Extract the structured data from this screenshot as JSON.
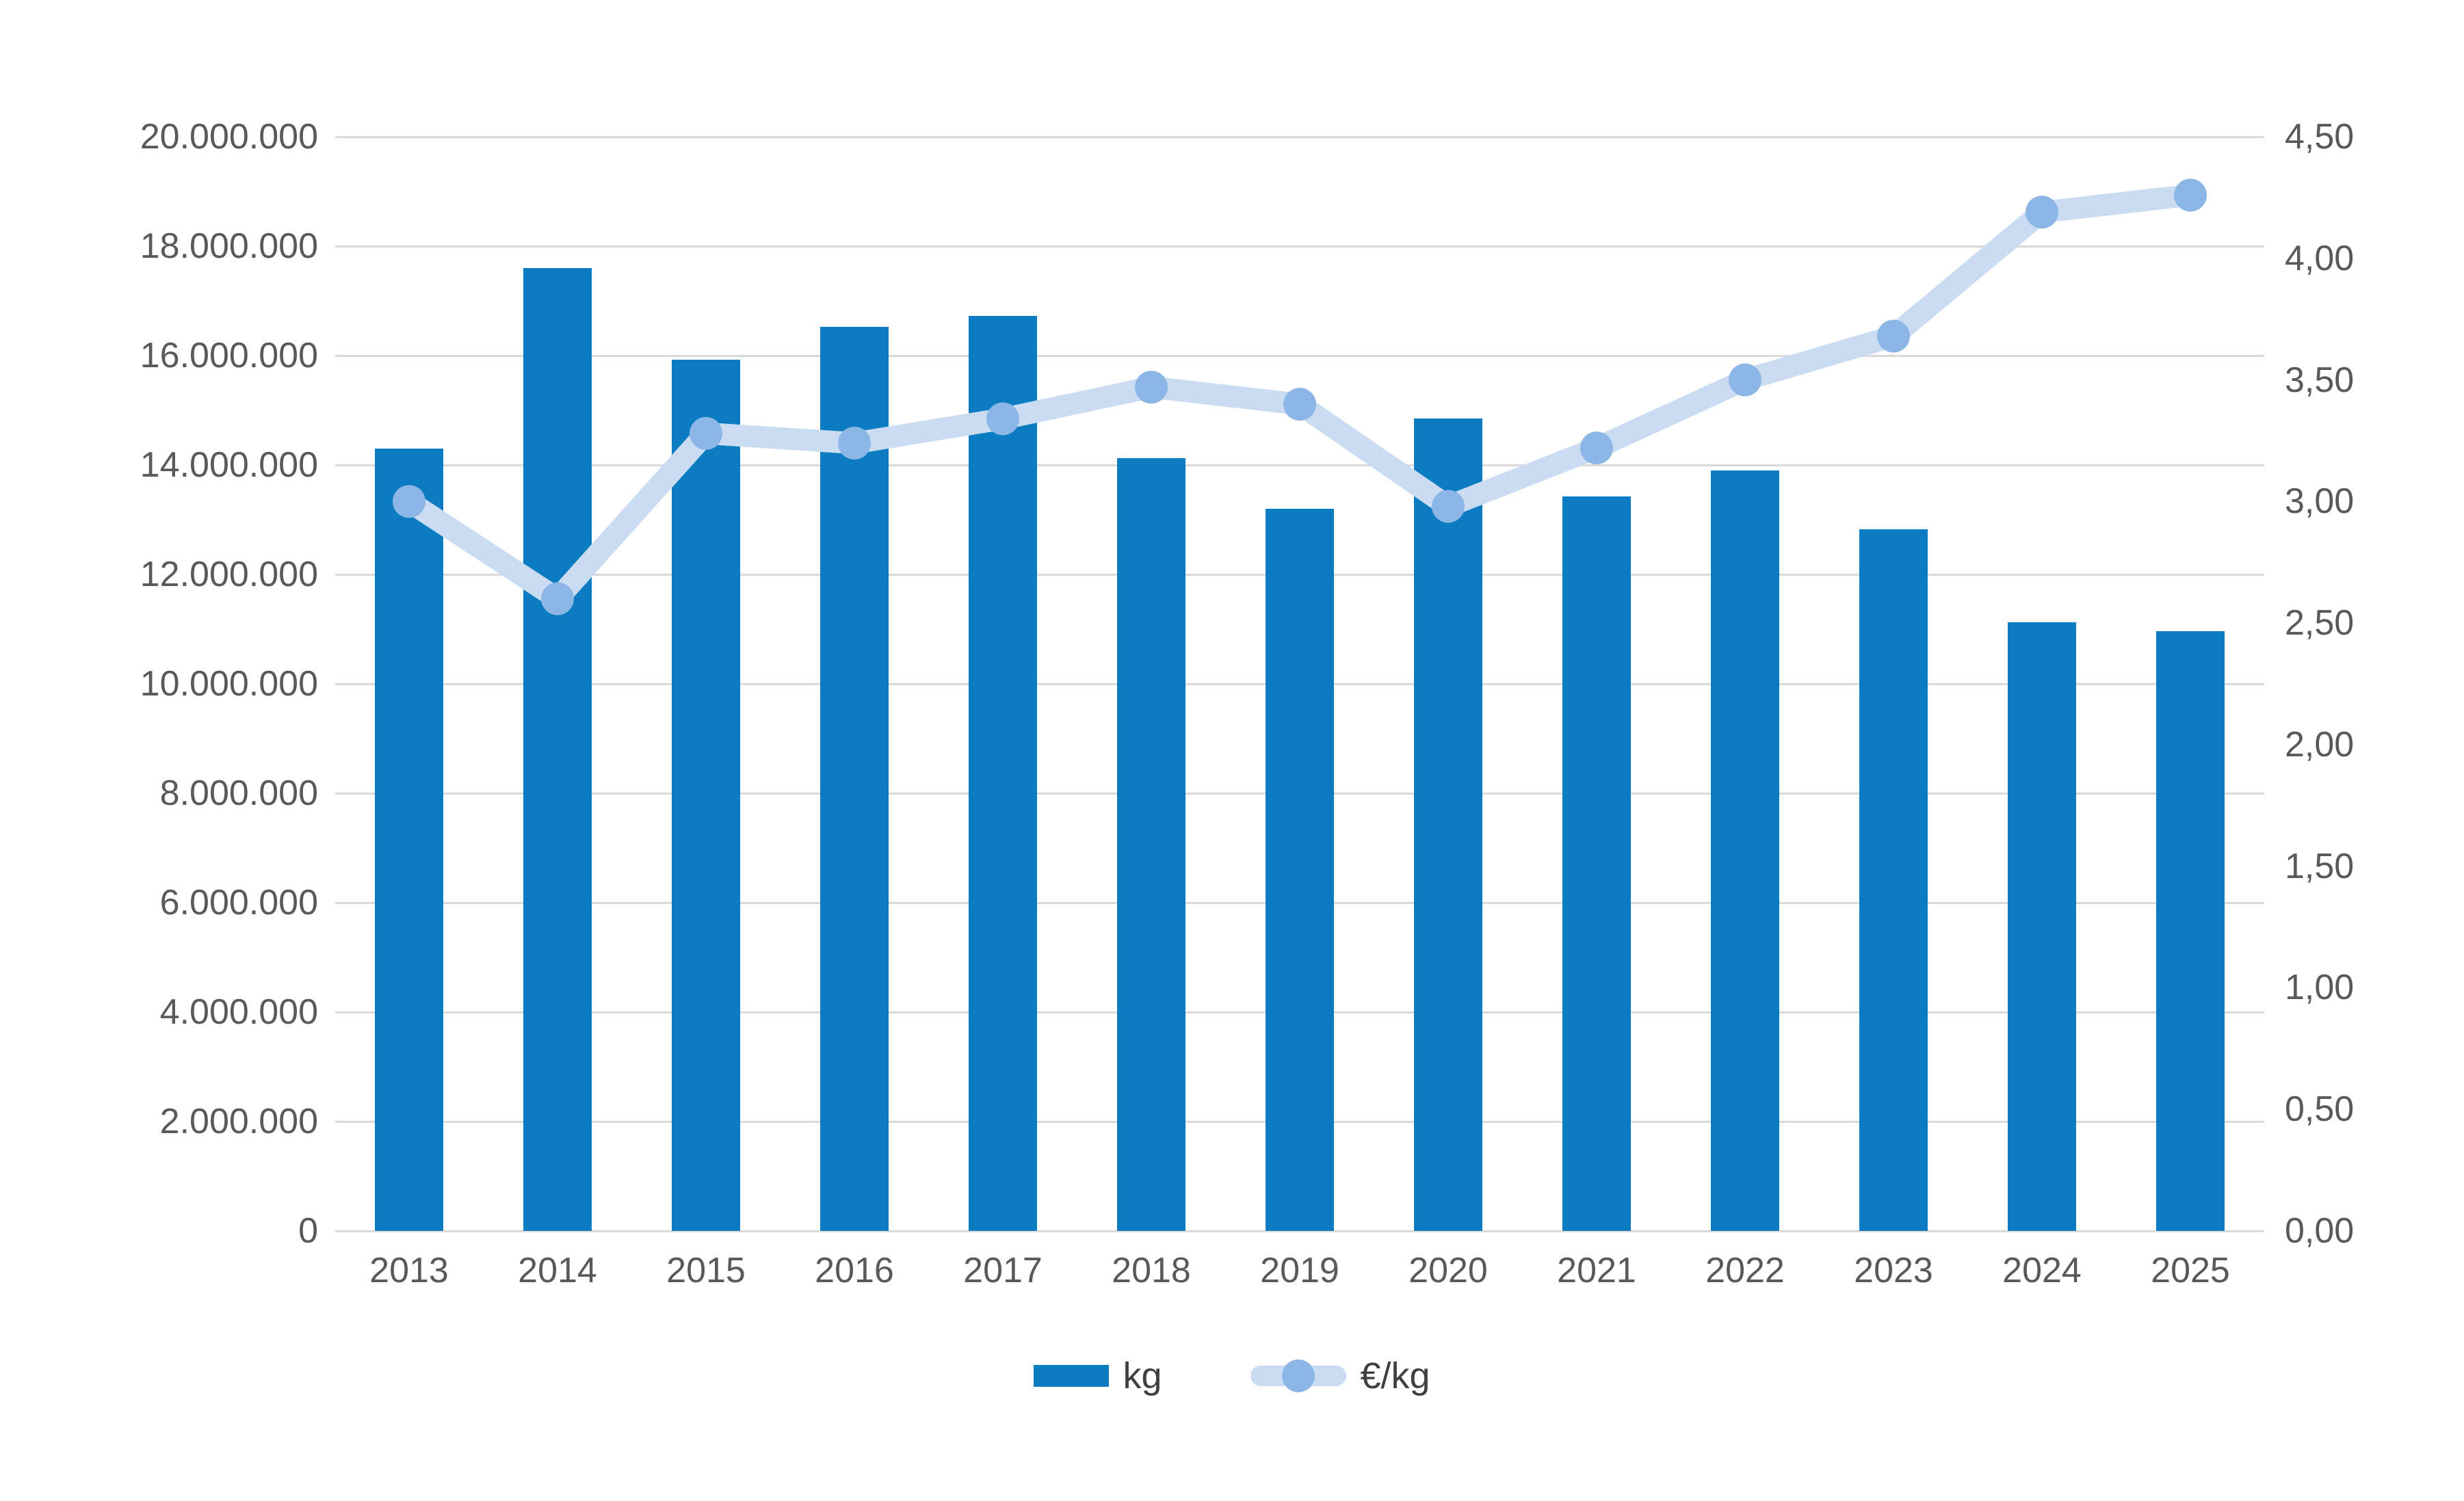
{
  "chart_data": {
    "type": "bar",
    "subtype": "combo-bar-line-dual-axis",
    "title": "",
    "xlabel": "",
    "ylabel_left": "",
    "ylabel_right": "",
    "grid": true,
    "legend_position": "bottom",
    "categories": [
      "2013",
      "2014",
      "2015",
      "2016",
      "2017",
      "2018",
      "2019",
      "2020",
      "2021",
      "2022",
      "2023",
      "2024",
      "2025"
    ],
    "series": [
      {
        "name": "kg",
        "type": "bar",
        "axis": "left",
        "values": [
          14300000,
          17600000,
          15930000,
          16520000,
          16720000,
          14120000,
          13200000,
          14850000,
          13420000,
          13900000,
          12820000,
          11120000,
          10960000
        ]
      },
      {
        "name": "€/kg",
        "type": "line",
        "axis": "right",
        "values": [
          3.0,
          2.6,
          3.28,
          3.24,
          3.34,
          3.47,
          3.4,
          2.98,
          3.22,
          3.5,
          3.68,
          4.19,
          4.26
        ]
      }
    ],
    "left_axis": {
      "min": 0,
      "max": 20000000,
      "step": 2000000,
      "tick_labels": [
        "0",
        "2.000.000",
        "4.000.000",
        "6.000.000",
        "8.000.000",
        "10.000.000",
        "12.000.000",
        "14.000.000",
        "16.000.000",
        "18.000.000",
        "20.000.000"
      ]
    },
    "right_axis": {
      "min": 0,
      "max": 4.5,
      "step": 0.5,
      "tick_labels": [
        "0,00",
        "0,50",
        "1,00",
        "1,50",
        "2,00",
        "2,50",
        "3,00",
        "3,50",
        "4,00",
        "4,50"
      ]
    }
  },
  "legend": {
    "items": [
      {
        "label": "kg"
      },
      {
        "label": "€/kg"
      }
    ]
  },
  "colors": {
    "bar": "#0b7cc1",
    "line": "#c9dcf2",
    "dot": "#8cb6e6",
    "gridline": "#d9d9d9",
    "axis_text": "#595959",
    "background": "#ffffff"
  }
}
